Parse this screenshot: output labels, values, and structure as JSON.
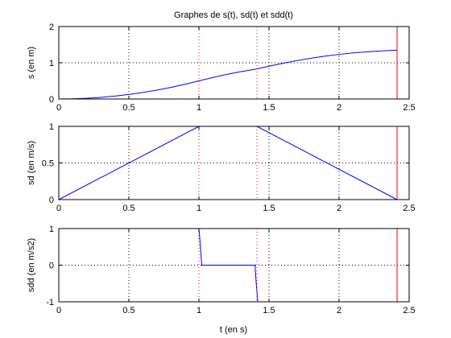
{
  "title": "Graphes de s(t), sd(t) et sdd(t)",
  "xlabel": "t (en s)",
  "colors": {
    "curve": "#0000ff",
    "marker": "#ff0000",
    "grid": "#000000",
    "axes": "#000000"
  },
  "chart_data": [
    {
      "type": "line",
      "title": "Graphes de s(t), sd(t) et sdd(t)",
      "ylabel": "s (en m)",
      "xlabel": "",
      "xlim": [
        0,
        2.5
      ],
      "ylim": [
        0,
        2
      ],
      "xticks": [
        0,
        0.5,
        1,
        1.5,
        2,
        2.5
      ],
      "xtick_labels": [
        "0",
        "0.5",
        "1",
        "1.5",
        "2",
        "2.5"
      ],
      "yticks": [
        0,
        1,
        2
      ],
      "ytick_labels": [
        "0",
        "1",
        "2"
      ],
      "grid": true,
      "series": [
        {
          "x": [
            0,
            0.1,
            0.2,
            0.3,
            0.4,
            0.5,
            0.6,
            0.7,
            0.8,
            0.9,
            1.0,
            1.1,
            1.2,
            1.3,
            1.4,
            1.5,
            1.6,
            1.7,
            1.8,
            1.9,
            2.0,
            2.1,
            2.2,
            2.3,
            2.4,
            2.414
          ],
          "y": [
            0,
            0.005,
            0.02,
            0.045,
            0.08,
            0.125,
            0.18,
            0.245,
            0.32,
            0.405,
            0.5,
            0.595,
            0.68,
            0.755,
            0.82,
            0.906,
            0.987,
            1.061,
            1.126,
            1.183,
            1.232,
            1.272,
            1.304,
            1.328,
            1.343,
            1.344
          ]
        }
      ],
      "vlines": [
        {
          "x": 1.0,
          "style": "dotted",
          "color": "#ff0000"
        },
        {
          "x": 1.414,
          "style": "dotted",
          "color": "#ff0000"
        },
        {
          "x": 2.414,
          "style": "solid",
          "color": "#ff0000"
        }
      ]
    },
    {
      "type": "line",
      "ylabel": "sd (en m/s)",
      "xlabel": "",
      "xlim": [
        0,
        2.5
      ],
      "ylim": [
        0,
        1
      ],
      "xticks": [
        0,
        0.5,
        1,
        1.5,
        2,
        2.5
      ],
      "xtick_labels": [
        "0",
        "0.5",
        "1",
        "1.5",
        "2",
        "2.5"
      ],
      "yticks": [
        0,
        0.5,
        1
      ],
      "ytick_labels": [
        "0",
        "0.5",
        "1"
      ],
      "grid": true,
      "series": [
        {
          "x": [
            0,
            1.0,
            1.414,
            2.414
          ],
          "y": [
            0,
            1,
            1,
            0
          ]
        }
      ],
      "vlines": [
        {
          "x": 1.0,
          "style": "dotted",
          "color": "#ff0000"
        },
        {
          "x": 1.414,
          "style": "dotted",
          "color": "#ff0000"
        },
        {
          "x": 2.414,
          "style": "solid",
          "color": "#ff0000"
        }
      ]
    },
    {
      "type": "line",
      "ylabel": "sdd (en m/s2)",
      "xlabel": "t (en s)",
      "xlim": [
        0,
        2.5
      ],
      "ylim": [
        -1,
        1
      ],
      "xticks": [
        0,
        0.5,
        1,
        1.5,
        2,
        2.5
      ],
      "xtick_labels": [
        "0",
        "0.5",
        "1",
        "1.5",
        "2",
        "2.5"
      ],
      "yticks": [
        -1,
        0,
        1
      ],
      "ytick_labels": [
        "-1",
        "0",
        "1"
      ],
      "grid": true,
      "series": [
        {
          "x": [
            1.0,
            1.01,
            1.02,
            1.4,
            1.41,
            1.42
          ],
          "y": [
            1,
            0.55,
            0,
            0,
            -0.55,
            -1
          ]
        }
      ],
      "vlines": [
        {
          "x": 1.0,
          "style": "dotted",
          "color": "#ff0000"
        },
        {
          "x": 1.414,
          "style": "dotted",
          "color": "#ff0000"
        },
        {
          "x": 2.414,
          "style": "solid",
          "color": "#ff0000"
        }
      ]
    }
  ]
}
